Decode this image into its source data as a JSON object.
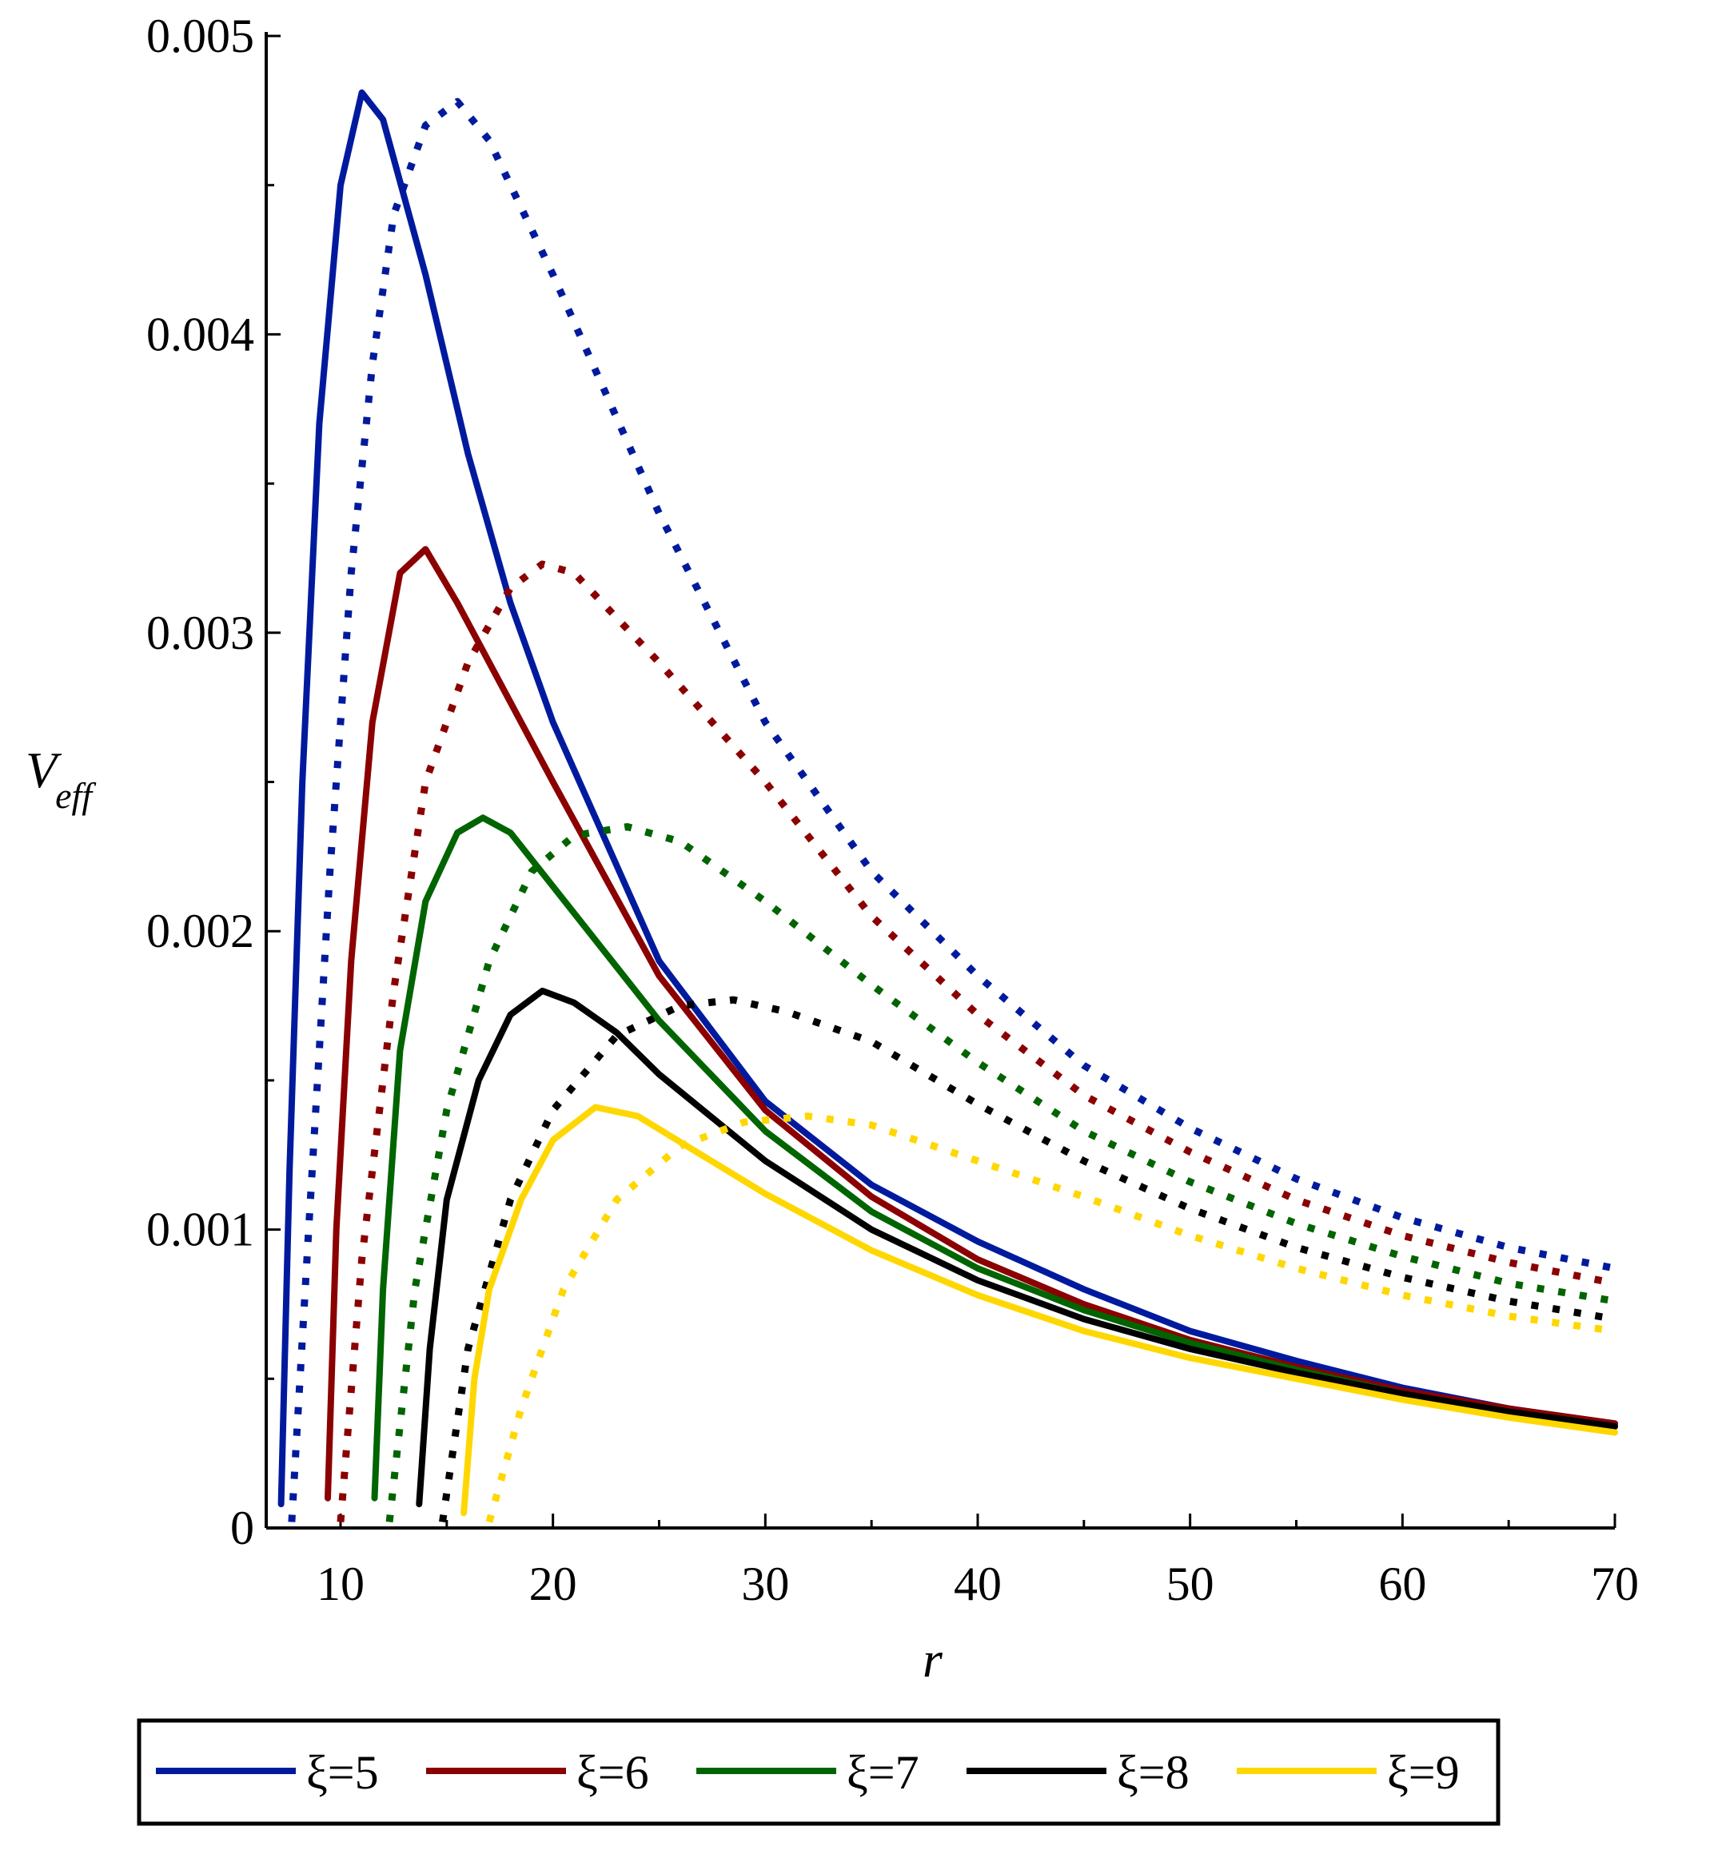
{
  "chart_data": {
    "type": "line",
    "title": "",
    "xlabel": "r",
    "ylabel_main": "V",
    "ylabel_sub": "eff",
    "xlim": [
      6.5,
      70
    ],
    "ylim": [
      0,
      0.005
    ],
    "x_ticks": [
      10,
      20,
      30,
      40,
      50,
      60,
      70
    ],
    "x_tick_labels": [
      "10",
      "20",
      "30",
      "40",
      "50",
      "60",
      "70"
    ],
    "y_ticks": [
      0,
      0.001,
      0.002,
      0.003,
      0.004,
      0.005
    ],
    "y_tick_labels": [
      "0",
      "0.001",
      "0.002",
      "0.003",
      "0.004",
      "0.005"
    ],
    "legend_position": "bottom",
    "series": [
      {
        "name": "ξ=5",
        "style": "solid",
        "color": "#001a9e",
        "points": [
          [
            7.2,
            8e-05
          ],
          [
            7.6,
            0.0012
          ],
          [
            8.2,
            0.0025
          ],
          [
            9.0,
            0.0037
          ],
          [
            10.0,
            0.0045
          ],
          [
            11.0,
            0.00481
          ],
          [
            12.0,
            0.00472
          ],
          [
            14.0,
            0.0042
          ],
          [
            16.0,
            0.0036
          ],
          [
            18.0,
            0.0031
          ],
          [
            20.0,
            0.0027
          ],
          [
            25.0,
            0.0019
          ],
          [
            30.0,
            0.00143
          ],
          [
            35.0,
            0.00115
          ],
          [
            40.0,
            0.00096
          ],
          [
            45.0,
            0.0008
          ],
          [
            50.0,
            0.00066
          ],
          [
            55.0,
            0.00056
          ],
          [
            60.0,
            0.00047
          ],
          [
            65.0,
            0.0004
          ],
          [
            70.0,
            0.00035
          ]
        ]
      },
      {
        "name": "ξ=5 (dotted)",
        "style": "dotted",
        "color": "#001a9e",
        "points": [
          [
            7.7,
            2e-05
          ],
          [
            8.5,
            0.001
          ],
          [
            9.5,
            0.0022
          ],
          [
            10.5,
            0.0032
          ],
          [
            11.5,
            0.0039
          ],
          [
            12.5,
            0.0044
          ],
          [
            14.0,
            0.0047
          ],
          [
            15.5,
            0.00478
          ],
          [
            17.0,
            0.00465
          ],
          [
            20.0,
            0.0042
          ],
          [
            25.0,
            0.0034
          ],
          [
            30.0,
            0.0027
          ],
          [
            35.0,
            0.0022
          ],
          [
            40.0,
            0.00185
          ],
          [
            45.0,
            0.00155
          ],
          [
            50.0,
            0.00134
          ],
          [
            55.0,
            0.00117
          ],
          [
            60.0,
            0.00104
          ],
          [
            65.0,
            0.00094
          ],
          [
            70.0,
            0.00087
          ]
        ]
      },
      {
        "name": "ξ=6",
        "style": "solid",
        "color": "#8b0000",
        "points": [
          [
            9.4,
            0.0001
          ],
          [
            9.8,
            0.001
          ],
          [
            10.5,
            0.0019
          ],
          [
            11.5,
            0.0027
          ],
          [
            12.8,
            0.0032
          ],
          [
            14.0,
            0.00328
          ],
          [
            15.5,
            0.0031
          ],
          [
            17.0,
            0.0029
          ],
          [
            20.0,
            0.0025
          ],
          [
            25.0,
            0.00185
          ],
          [
            30.0,
            0.0014
          ],
          [
            35.0,
            0.00111
          ],
          [
            40.0,
            0.0009
          ],
          [
            45.0,
            0.00075
          ],
          [
            50.0,
            0.00063
          ],
          [
            55.0,
            0.00054
          ],
          [
            60.0,
            0.00046
          ],
          [
            65.0,
            0.0004
          ],
          [
            70.0,
            0.00035
          ]
        ]
      },
      {
        "name": "ξ=6 (dotted)",
        "style": "dotted",
        "color": "#8b0000",
        "points": [
          [
            10.0,
            2e-05
          ],
          [
            11.0,
            0.0009
          ],
          [
            12.5,
            0.0018
          ],
          [
            14.0,
            0.0025
          ],
          [
            16.0,
            0.0029
          ],
          [
            18.0,
            0.00315
          ],
          [
            19.5,
            0.00323
          ],
          [
            21.0,
            0.0032
          ],
          [
            25.0,
            0.0029
          ],
          [
            30.0,
            0.0025
          ],
          [
            35.0,
            0.00205
          ],
          [
            40.0,
            0.00172
          ],
          [
            45.0,
            0.00145
          ],
          [
            50.0,
            0.00126
          ],
          [
            55.0,
            0.0011
          ],
          [
            60.0,
            0.00098
          ],
          [
            65.0,
            0.00089
          ],
          [
            70.0,
            0.00082
          ]
        ]
      },
      {
        "name": "ξ=7",
        "style": "solid",
        "color": "#006400",
        "points": [
          [
            11.6,
            0.0001
          ],
          [
            12.0,
            0.0008
          ],
          [
            12.8,
            0.0016
          ],
          [
            14.0,
            0.0021
          ],
          [
            15.5,
            0.00233
          ],
          [
            16.7,
            0.00238
          ],
          [
            18.0,
            0.00233
          ],
          [
            20.0,
            0.00215
          ],
          [
            25.0,
            0.0017
          ],
          [
            30.0,
            0.00133
          ],
          [
            35.0,
            0.00106
          ],
          [
            40.0,
            0.00087
          ],
          [
            45.0,
            0.00073
          ],
          [
            50.0,
            0.00062
          ],
          [
            55.0,
            0.00053
          ],
          [
            60.0,
            0.00045
          ],
          [
            65.0,
            0.00039
          ],
          [
            70.0,
            0.00034
          ]
        ]
      },
      {
        "name": "ξ=7 (dotted)",
        "style": "dotted",
        "color": "#006400",
        "points": [
          [
            12.3,
            2e-05
          ],
          [
            13.5,
            0.0008
          ],
          [
            15.0,
            0.0014
          ],
          [
            17.0,
            0.0019
          ],
          [
            19.0,
            0.0022
          ],
          [
            21.0,
            0.00232
          ],
          [
            23.5,
            0.00235
          ],
          [
            26.0,
            0.0023
          ],
          [
            30.0,
            0.0021
          ],
          [
            35.0,
            0.00182
          ],
          [
            40.0,
            0.00156
          ],
          [
            45.0,
            0.00133
          ],
          [
            50.0,
            0.00116
          ],
          [
            55.0,
            0.00102
          ],
          [
            60.0,
            0.00091
          ],
          [
            65.0,
            0.00082
          ],
          [
            70.0,
            0.00076
          ]
        ]
      },
      {
        "name": "ξ=8",
        "style": "solid",
        "color": "#000000",
        "points": [
          [
            13.7,
            8e-05
          ],
          [
            14.2,
            0.0006
          ],
          [
            15.0,
            0.0011
          ],
          [
            16.5,
            0.0015
          ],
          [
            18.0,
            0.00172
          ],
          [
            19.5,
            0.0018
          ],
          [
            21.0,
            0.00176
          ],
          [
            23.0,
            0.00166
          ],
          [
            25.0,
            0.00152
          ],
          [
            30.0,
            0.00123
          ],
          [
            35.0,
            0.001
          ],
          [
            40.0,
            0.00083
          ],
          [
            45.0,
            0.0007
          ],
          [
            50.0,
            0.0006
          ],
          [
            55.0,
            0.00052
          ],
          [
            60.0,
            0.00045
          ],
          [
            65.0,
            0.00039
          ],
          [
            70.0,
            0.00034
          ]
        ]
      },
      {
        "name": "ξ=8 (dotted)",
        "style": "dotted",
        "color": "#000000",
        "points": [
          [
            14.8,
            2e-05
          ],
          [
            16.0,
            0.0006
          ],
          [
            18.0,
            0.0011
          ],
          [
            20.0,
            0.0014
          ],
          [
            23.0,
            0.00165
          ],
          [
            26.0,
            0.00175
          ],
          [
            28.5,
            0.00177
          ],
          [
            31.0,
            0.00173
          ],
          [
            35.0,
            0.00163
          ],
          [
            40.0,
            0.00142
          ],
          [
            45.0,
            0.00123
          ],
          [
            50.0,
            0.00107
          ],
          [
            55.0,
            0.00094
          ],
          [
            60.0,
            0.00084
          ],
          [
            65.0,
            0.00076
          ],
          [
            70.0,
            0.0007
          ]
        ]
      },
      {
        "name": "ξ=9",
        "style": "solid",
        "color": "#ffd700",
        "points": [
          [
            15.8,
            5e-05
          ],
          [
            16.3,
            0.0005
          ],
          [
            17.0,
            0.0008
          ],
          [
            18.5,
            0.0011
          ],
          [
            20.0,
            0.0013
          ],
          [
            22.0,
            0.00141
          ],
          [
            24.0,
            0.00138
          ],
          [
            27.0,
            0.00125
          ],
          [
            30.0,
            0.00112
          ],
          [
            35.0,
            0.00093
          ],
          [
            40.0,
            0.00078
          ],
          [
            45.0,
            0.00066
          ],
          [
            50.0,
            0.00057
          ],
          [
            55.0,
            0.0005
          ],
          [
            60.0,
            0.00043
          ],
          [
            65.0,
            0.00037
          ],
          [
            70.0,
            0.00032
          ]
        ]
      },
      {
        "name": "ξ=9 (dotted)",
        "style": "dotted",
        "color": "#ffd700",
        "points": [
          [
            17.0,
            2e-05
          ],
          [
            18.5,
            0.0004
          ],
          [
            20.5,
            0.0008
          ],
          [
            23.0,
            0.0011
          ],
          [
            26.0,
            0.00128
          ],
          [
            29.0,
            0.00136
          ],
          [
            32.0,
            0.00138
          ],
          [
            35.0,
            0.00135
          ],
          [
            40.0,
            0.00123
          ],
          [
            45.0,
            0.00111
          ],
          [
            50.0,
            0.00098
          ],
          [
            55.0,
            0.00087
          ],
          [
            60.0,
            0.00078
          ],
          [
            65.0,
            0.00071
          ],
          [
            70.0,
            0.00066
          ]
        ]
      }
    ],
    "legend": [
      {
        "label": "ξ=5",
        "color": "#001a9e"
      },
      {
        "label": "ξ=6",
        "color": "#8b0000"
      },
      {
        "label": "ξ=7",
        "color": "#006400"
      },
      {
        "label": "ξ=8",
        "color": "#000000"
      },
      {
        "label": "ξ=9",
        "color": "#ffd700"
      }
    ]
  }
}
